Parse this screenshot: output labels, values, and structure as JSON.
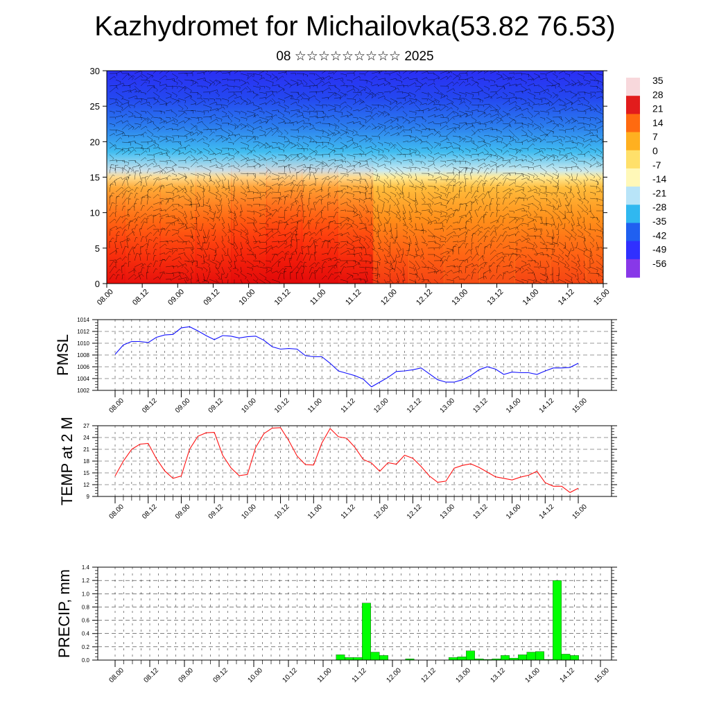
{
  "header": {
    "title": "Kazhydromet for Michailovka(53.82 76.53)",
    "subtitle": "08 ☆☆☆☆☆☆☆☆☆ 2025"
  },
  "colors": {
    "pmsl_line": "#1010ff",
    "temp_line": "#ff1010",
    "precip_bar": "#00ff00",
    "grid": "#000000"
  },
  "chart_data": [
    {
      "id": "cross-section",
      "type": "heatmap",
      "title": "",
      "xlabel": "",
      "ylabel": "",
      "ylim": [
        0,
        30
      ],
      "yticks": [
        0,
        5,
        10,
        15,
        20,
        25,
        30
      ],
      "xticks": [
        "08.00",
        "08.12",
        "09.00",
        "09.12",
        "10.00",
        "10.12",
        "11.00",
        "11.12",
        "12.00",
        "12.12",
        "13.00",
        "13.12",
        "14.00",
        "14.12",
        "15.00"
      ],
      "colorbar": {
        "labels": [
          "35",
          "28",
          "21",
          "14",
          "7",
          "0",
          "-7",
          "-14",
          "-21",
          "-28",
          "-35",
          "-42",
          "-49",
          "-56"
        ],
        "stops": [
          "#f8d8dc",
          "#e21c1c",
          "#ff6a10",
          "#ffb020",
          "#ffe06a",
          "#fff8b8",
          "#b8e4f8",
          "#30b8f0",
          "#2060f0",
          "#3030ff",
          "#8838e8"
        ]
      },
      "surface_warmth": [
        0.92,
        0.9,
        0.9,
        0.92,
        0.97,
        1.0,
        0.97,
        0.92,
        0.85,
        0.8,
        0.78,
        0.78,
        0.8,
        0.8,
        0.78
      ],
      "grid": false,
      "wind_barbs": true
    },
    {
      "id": "pmsl",
      "type": "line",
      "ylabel": "PMSL",
      "ylim": [
        1002,
        1014
      ],
      "yticks": [
        "1002",
        "1004",
        "1006",
        "1008",
        "1010",
        "1012",
        "1014"
      ],
      "xticks": [
        "08.00",
        "08.12",
        "09.00",
        "09.12",
        "10.00",
        "10.12",
        "11.00",
        "11.12",
        "12.00",
        "12.12",
        "13.00",
        "13.12",
        "14.00",
        "14.12",
        "15.00"
      ],
      "x_hours": [
        0,
        3,
        6,
        9,
        12,
        15,
        18,
        21,
        24,
        27,
        30,
        33,
        36,
        39,
        42,
        45,
        48,
        51,
        54,
        57,
        60,
        63,
        66,
        69,
        72,
        75,
        78,
        81,
        84,
        87,
        90,
        93,
        96,
        99,
        102,
        105,
        108,
        111,
        114,
        117,
        120,
        123,
        126,
        129,
        132,
        135,
        138,
        141,
        144,
        147,
        150,
        153,
        156,
        159,
        162,
        165,
        168
      ],
      "values": [
        1008.1,
        1009.7,
        1010.3,
        1010.3,
        1010.1,
        1011.0,
        1011.4,
        1011.5,
        1012.6,
        1012.8,
        1012.1,
        1011.3,
        1010.6,
        1011.3,
        1011.2,
        1010.9,
        1011.1,
        1011.2,
        1010.5,
        1009.4,
        1009.0,
        1009.1,
        1009.0,
        1007.9,
        1007.7,
        1007.7,
        1006.6,
        1005.3,
        1004.9,
        1004.5,
        1003.9,
        1002.6,
        1003.4,
        1004.2,
        1005.2,
        1005.3,
        1005.5,
        1005.8,
        1004.8,
        1003.8,
        1003.4,
        1003.4,
        1003.8,
        1004.5,
        1005.5,
        1006.0,
        1005.6,
        1004.7,
        1005.1,
        1005.0,
        1005.0,
        1004.7,
        1005.3,
        1005.8,
        1005.8,
        1005.9,
        1006.6
      ],
      "grid": true
    },
    {
      "id": "temp2m",
      "type": "line",
      "ylabel": "TEMP at 2 M",
      "ylim": [
        9,
        27
      ],
      "yticks": [
        "9",
        "12",
        "15",
        "18",
        "21",
        "24",
        "27"
      ],
      "xticks": [
        "08.00",
        "08.12",
        "09.00",
        "09.12",
        "10.00",
        "10.12",
        "11.00",
        "11.12",
        "12.00",
        "12.12",
        "13.00",
        "13.12",
        "14.00",
        "14.12",
        "15.00"
      ],
      "x_hours": [
        0,
        3,
        6,
        9,
        12,
        15,
        18,
        21,
        24,
        27,
        30,
        33,
        36,
        39,
        42,
        45,
        48,
        51,
        54,
        57,
        60,
        63,
        66,
        69,
        72,
        75,
        78,
        81,
        84,
        87,
        90,
        93,
        96,
        99,
        102,
        105,
        108,
        111,
        114,
        117,
        120,
        123,
        126,
        129,
        132,
        135,
        138,
        141,
        144,
        147,
        150,
        153,
        156,
        159,
        162,
        165,
        168
      ],
      "values": [
        14.2,
        18.0,
        21.0,
        22.3,
        22.5,
        18.6,
        15.5,
        13.6,
        14.2,
        21.0,
        24.3,
        25.2,
        25.3,
        19.5,
        16.3,
        14.3,
        14.6,
        21.5,
        25.0,
        26.4,
        26.5,
        23.2,
        19.3,
        17.1,
        17.0,
        22.6,
        26.3,
        24.2,
        23.8,
        21.5,
        18.4,
        17.5,
        15.4,
        17.6,
        17.2,
        19.5,
        18.7,
        16.6,
        14.2,
        12.6,
        12.9,
        16.2,
        16.9,
        17.3,
        16.4,
        15.2,
        14.0,
        13.6,
        13.2,
        13.9,
        14.4,
        15.4,
        12.5,
        11.6,
        11.6,
        10.0,
        11.1
      ],
      "grid": true
    },
    {
      "id": "precip",
      "type": "bar",
      "ylabel": "PRECIP, mm",
      "ylim": [
        0,
        1.4
      ],
      "yticks": [
        "0.0",
        "0.2",
        "0.4",
        "0.6",
        "0.8",
        "1.0",
        "1.2",
        "1.4"
      ],
      "xticks": [
        "08.00",
        "08.12",
        "09.00",
        "09.12",
        "10.00",
        "10.12",
        "11.00",
        "11.12",
        "12.00",
        "12.12",
        "13.00",
        "13.12",
        "14.00",
        "14.12",
        "15.00"
      ],
      "bar_hours": [
        78,
        81,
        84,
        87,
        90,
        93,
        96,
        102,
        105,
        117,
        120,
        123,
        126,
        129,
        132,
        135,
        138,
        141,
        144,
        147,
        150,
        153,
        156,
        159,
        162
      ],
      "values": [
        0.08,
        0.04,
        0.04,
        0.86,
        0.12,
        0.07,
        0.0,
        0.02,
        0.0,
        0.04,
        0.05,
        0.14,
        0.02,
        0.01,
        0.02,
        0.07,
        0.03,
        0.08,
        0.12,
        0.13,
        0.01,
        1.2,
        0.09,
        0.07,
        0.0
      ],
      "grid": true
    }
  ]
}
